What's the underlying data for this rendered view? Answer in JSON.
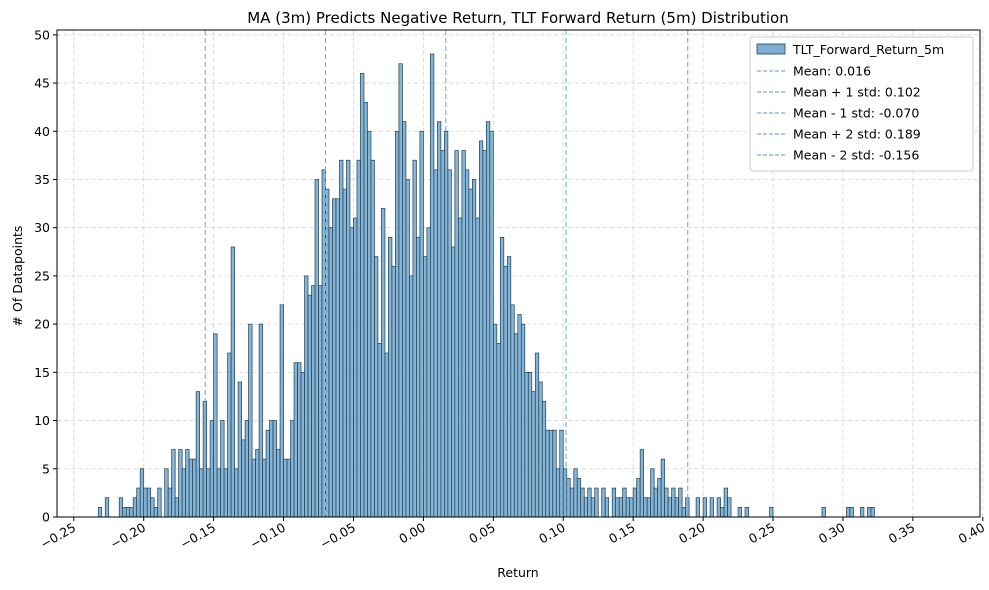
{
  "chart_data": {
    "type": "bar",
    "title": "MA (3m) Predicts Negative Return, TLT Forward Return (5m) Distribution",
    "xlabel": "Return",
    "ylabel": "# Of Datapoints",
    "xlim": [
      -0.262,
      0.398
    ],
    "ylim": [
      0,
      50.5
    ],
    "x_ticks": [
      -0.25,
      -0.2,
      -0.15,
      -0.1,
      -0.05,
      0.0,
      0.05,
      0.1,
      0.15,
      0.2,
      0.25,
      0.3,
      0.35,
      0.4
    ],
    "x_tick_labels": [
      "−0.25",
      "−0.20",
      "−0.15",
      "−0.10",
      "−0.05",
      "0.00",
      "0.05",
      "0.10",
      "0.15",
      "0.20",
      "0.25",
      "0.30",
      "0.35",
      "0.40"
    ],
    "y_ticks": [
      0,
      5,
      10,
      15,
      20,
      25,
      30,
      35,
      40,
      45,
      50
    ],
    "y_tick_labels": [
      "0",
      "5",
      "10",
      "15",
      "20",
      "25",
      "30",
      "35",
      "40",
      "45",
      "50"
    ],
    "grid": true,
    "legend_position": "top-right",
    "bar_color": "#7fb0d3",
    "bar_edge_color": "#1f3f55",
    "line_color": "#7fa8d4",
    "series": [
      {
        "name": "TLT_Forward_Return_5m",
        "bin_start": -0.2325,
        "bin_width": 0.0025,
        "values": [
          1,
          0,
          2,
          0,
          0,
          0,
          2,
          1,
          1,
          1,
          2,
          3,
          5,
          3,
          3,
          2,
          1,
          3,
          0,
          5,
          3,
          7,
          2,
          7,
          5,
          7,
          6,
          6,
          13,
          5,
          12,
          5,
          10,
          19,
          5,
          10,
          5,
          17,
          28,
          5,
          14,
          8,
          10,
          20,
          6,
          7,
          20,
          6,
          9,
          10,
          10,
          7,
          22,
          6,
          6,
          10,
          16,
          16,
          15,
          25,
          23,
          24,
          35,
          24,
          36,
          34,
          30,
          33,
          33,
          37,
          34,
          37,
          30,
          31,
          37,
          46,
          43,
          40,
          37,
          27,
          18,
          32,
          17,
          29,
          26,
          40,
          47,
          41,
          35,
          25,
          37,
          29,
          40,
          27,
          30,
          48,
          36,
          41,
          38,
          40,
          36,
          28,
          38,
          31,
          38,
          36,
          34,
          35,
          31,
          39,
          38,
          41,
          40,
          20,
          18,
          29,
          26,
          27,
          22,
          19,
          21,
          20,
          15,
          15,
          13,
          17,
          14,
          12,
          9,
          9,
          9,
          5,
          9,
          5,
          4,
          3,
          5,
          4,
          3,
          2,
          3,
          2,
          3,
          0,
          3,
          2,
          0,
          3,
          2,
          2,
          3,
          2,
          2,
          3,
          4,
          7,
          2,
          2,
          5,
          3,
          4,
          6,
          3,
          2,
          3,
          2,
          3,
          1,
          2,
          0,
          0,
          2,
          0,
          2,
          0,
          2,
          0,
          2,
          1,
          3,
          2,
          0,
          0,
          1,
          0,
          1,
          0,
          0,
          0,
          0,
          0,
          0,
          1,
          0,
          0,
          0,
          0,
          0,
          0,
          0,
          0,
          0,
          0,
          0,
          0,
          0,
          0,
          1,
          0,
          0,
          0,
          0,
          0,
          0,
          1,
          1,
          0,
          0,
          1,
          0,
          1,
          1
        ]
      }
    ],
    "reference_lines": [
      {
        "label": "Mean: 0.016",
        "x": 0.016
      },
      {
        "label": "Mean + 1 std: 0.102",
        "x": 0.102
      },
      {
        "label": "Mean - 1 std: -0.070",
        "x": -0.07
      },
      {
        "label": "Mean + 2 std: 0.189",
        "x": 0.189
      },
      {
        "label": "Mean - 2 std: -0.156",
        "x": -0.156
      }
    ]
  }
}
